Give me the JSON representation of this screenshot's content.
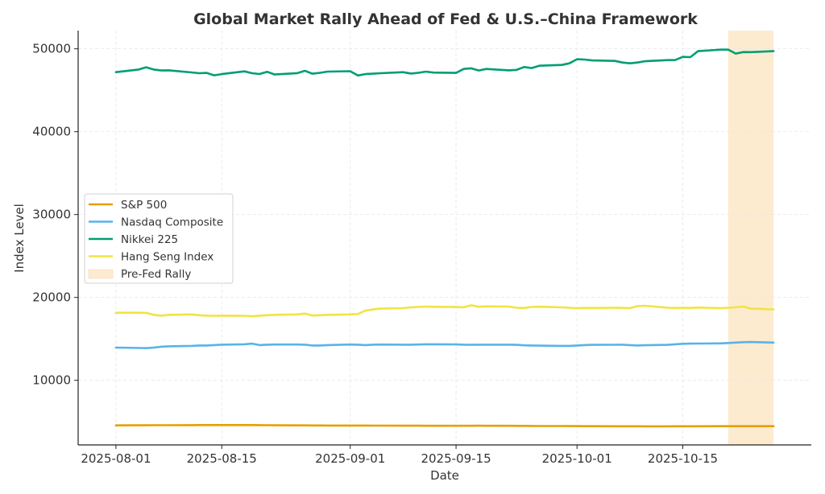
{
  "chart_data": {
    "type": "line",
    "title": "Global Market Rally Ahead of Fed & U.S.–China Framework",
    "xlabel": "Date",
    "ylabel": "Index Level",
    "xlim": [
      "2025-07-27",
      "2025-11-01"
    ],
    "ylim": [
      2200,
      52200
    ],
    "x_ticks": [
      "2025-08-01",
      "2025-08-15",
      "2025-09-01",
      "2025-09-15",
      "2025-10-01",
      "2025-10-15"
    ],
    "y_ticks": [
      10000,
      20000,
      30000,
      40000,
      50000
    ],
    "grid": true,
    "legend_position": "center-left",
    "x": [
      "2025-08-01",
      "2025-08-04",
      "2025-08-05",
      "2025-08-06",
      "2025-08-07",
      "2025-08-08",
      "2025-08-11",
      "2025-08-12",
      "2025-08-13",
      "2025-08-14",
      "2025-08-15",
      "2025-08-18",
      "2025-08-19",
      "2025-08-20",
      "2025-08-21",
      "2025-08-22",
      "2025-08-25",
      "2025-08-26",
      "2025-08-27",
      "2025-08-28",
      "2025-08-29",
      "2025-09-01",
      "2025-09-02",
      "2025-09-03",
      "2025-09-04",
      "2025-09-05",
      "2025-09-08",
      "2025-09-09",
      "2025-09-10",
      "2025-09-11",
      "2025-09-12",
      "2025-09-15",
      "2025-09-16",
      "2025-09-17",
      "2025-09-18",
      "2025-09-19",
      "2025-09-22",
      "2025-09-23",
      "2025-09-24",
      "2025-09-25",
      "2025-09-26",
      "2025-09-29",
      "2025-09-30",
      "2025-10-01",
      "2025-10-02",
      "2025-10-03",
      "2025-10-06",
      "2025-10-07",
      "2025-10-08",
      "2025-10-09",
      "2025-10-10",
      "2025-10-13",
      "2025-10-14",
      "2025-10-15",
      "2025-10-16",
      "2025-10-17",
      "2025-10-20",
      "2025-10-21",
      "2025-10-22",
      "2025-10-23",
      "2025-10-24",
      "2025-10-27"
    ],
    "series": [
      {
        "name": "S&P 500",
        "color": "#E69F00",
        "values": [
          4560,
          4565,
          4570,
          4575,
          4580,
          4580,
          4590,
          4595,
          4600,
          4600,
          4600,
          4600,
          4595,
          4590,
          4580,
          4570,
          4560,
          4555,
          4550,
          4545,
          4540,
          4540,
          4540,
          4535,
          4530,
          4530,
          4525,
          4520,
          4520,
          4515,
          4510,
          4510,
          4515,
          4515,
          4520,
          4515,
          4510,
          4505,
          4500,
          4490,
          4485,
          4480,
          4475,
          4470,
          4465,
          4460,
          4455,
          4455,
          4450,
          4450,
          4445,
          4445,
          4450,
          4450,
          4455,
          4455,
          4460,
          4460,
          4460,
          4465,
          4465,
          4465
        ]
      },
      {
        "name": "Nasdaq Composite",
        "color": "#56B4E9",
        "values": [
          13950,
          13900,
          13880,
          13950,
          14050,
          14100,
          14150,
          14200,
          14200,
          14250,
          14300,
          14350,
          14420,
          14250,
          14300,
          14320,
          14320,
          14300,
          14200,
          14200,
          14250,
          14320,
          14300,
          14250,
          14300,
          14320,
          14300,
          14300,
          14320,
          14350,
          14350,
          14330,
          14300,
          14280,
          14300,
          14300,
          14300,
          14280,
          14220,
          14200,
          14180,
          14150,
          14150,
          14200,
          14250,
          14280,
          14290,
          14300,
          14250,
          14200,
          14230,
          14280,
          14350,
          14400,
          14420,
          14430,
          14450,
          14500,
          14550,
          14600,
          14620,
          14550
        ]
      },
      {
        "name": "Nikkei 225",
        "color": "#009E73",
        "values": [
          47180,
          47500,
          47770,
          47500,
          47380,
          47400,
          47150,
          47050,
          47090,
          46800,
          46950,
          47280,
          47050,
          46960,
          47230,
          46900,
          47060,
          47350,
          47000,
          47100,
          47250,
          47300,
          46780,
          46950,
          47000,
          47050,
          47180,
          47020,
          47100,
          47250,
          47130,
          47090,
          47570,
          47650,
          47380,
          47570,
          47400,
          47450,
          47800,
          47680,
          47960,
          48050,
          48250,
          48740,
          48700,
          48600,
          48540,
          48350,
          48250,
          48350,
          48500,
          48640,
          48650,
          49030,
          49000,
          49710,
          49900,
          49900,
          49420,
          49610,
          49600,
          49710
        ]
      },
      {
        "name": "Hang Seng Index",
        "color": "#F0E442",
        "values": [
          18150,
          18150,
          18130,
          17900,
          17800,
          17900,
          17950,
          17850,
          17800,
          17780,
          17800,
          17780,
          17720,
          17800,
          17850,
          17900,
          17950,
          18050,
          17820,
          17850,
          17900,
          17950,
          18000,
          18400,
          18550,
          18650,
          18700,
          18800,
          18850,
          18900,
          18870,
          18840,
          18800,
          19050,
          18880,
          18920,
          18900,
          18750,
          18720,
          18850,
          18880,
          18800,
          18750,
          18700,
          18730,
          18720,
          18750,
          18730,
          18700,
          18950,
          19000,
          18750,
          18720,
          18750,
          18720,
          18780,
          18700,
          18750,
          18800,
          18900,
          18650,
          18550
        ]
      }
    ],
    "shaded_regions": [
      {
        "label": "Pre-Fed Rally",
        "start": "2025-10-21",
        "end": "2025-10-27",
        "color": "#FDEBD0"
      }
    ]
  }
}
